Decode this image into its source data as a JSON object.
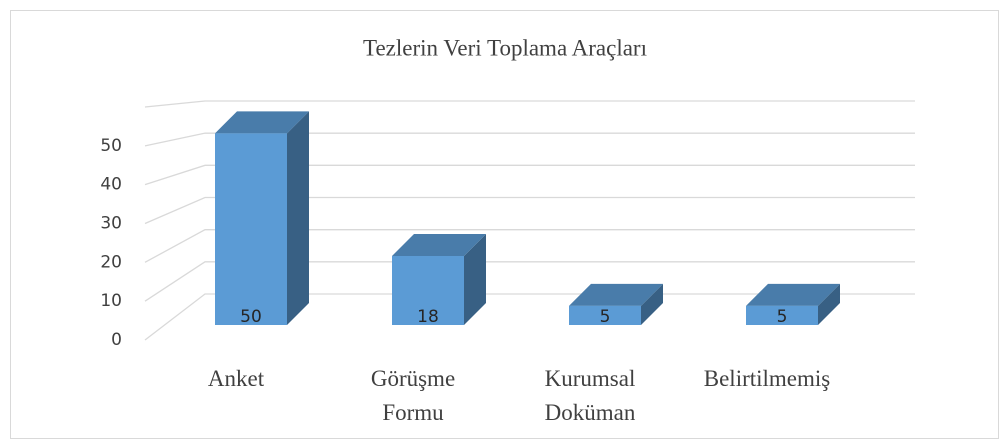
{
  "chart_data": {
    "type": "bar3d",
    "title": "Tezlerin Veri Toplama Araçları",
    "categories": [
      "Anket",
      "Görüşme Formu",
      "Kurumsal Doküman",
      "Belirtilmemiş"
    ],
    "values": [
      50,
      18,
      5,
      5
    ],
    "color": "#5b9bd5",
    "ylim": [
      0,
      60
    ],
    "yticks": [
      0,
      10,
      20,
      30,
      40,
      50
    ],
    "grid": true,
    "data_labels": true
  }
}
